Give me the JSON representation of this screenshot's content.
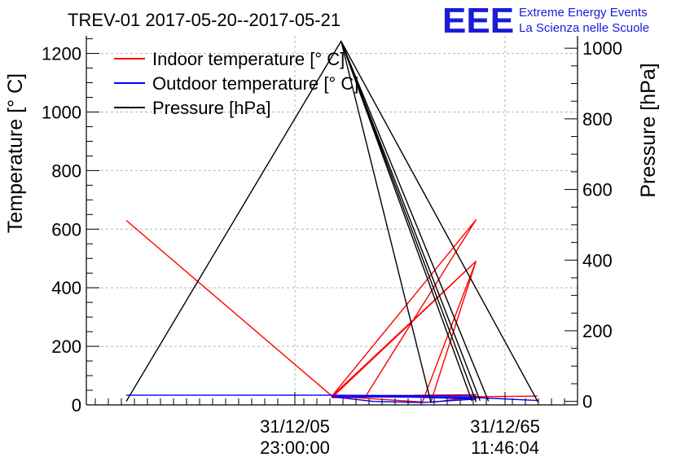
{
  "title": "TREV-01 2017-05-20--2017-05-21",
  "logo": {
    "mark": "EEE",
    "line1": "Extreme Energy Events",
    "line2": "La Scienza nelle Scuole"
  },
  "chart_data": {
    "type": "line",
    "left_axis": {
      "label": "Temperature [° C]",
      "range": [
        0,
        1260
      ],
      "ticks": [
        0,
        200,
        400,
        600,
        800,
        1000,
        1200
      ]
    },
    "right_axis": {
      "label": "Pressure [hPa]",
      "range": [
        -10,
        1035
      ],
      "ticks": [
        0,
        200,
        400,
        600,
        800,
        1000
      ]
    },
    "x_axis": {
      "ticks": [
        {
          "date": "31/12/05",
          "time": "23:00:00"
        },
        {
          "date": "31/12/65",
          "time": "11:46:04"
        }
      ]
    },
    "grid": true,
    "legend": {
      "placement": "top-left",
      "entries": [
        {
          "label": "Indoor temperature [° C]",
          "color": "#ff0000"
        },
        {
          "label": "Outdoor temperature [° C]",
          "color": "#0000ff"
        },
        {
          "label": "Pressure [hPa]",
          "color": "#000000"
        }
      ]
    },
    "series": [
      {
        "axis": "left",
        "color": "#ff0000",
        "points": [
          [
            0.0,
            630
          ],
          [
            0.5,
            30
          ],
          [
            0.85,
            35
          ],
          [
            0.5,
            25
          ],
          [
            0.58,
            25
          ],
          [
            0.85,
            632
          ],
          [
            0.5,
            30
          ],
          [
            0.5,
            25
          ],
          [
            0.85,
            490
          ],
          [
            0.5,
            30
          ],
          [
            0.72,
            10
          ],
          [
            0.85,
            490
          ],
          [
            0.74,
            8
          ],
          [
            0.85,
            28
          ],
          [
            1.0,
            30
          ]
        ]
      },
      {
        "axis": "left",
        "color": "#0000ff",
        "points": [
          [
            0.0,
            33
          ],
          [
            0.5,
            33
          ],
          [
            0.85,
            30
          ],
          [
            0.55,
            30
          ],
          [
            0.74,
            25
          ],
          [
            0.85,
            20
          ],
          [
            0.72,
            8
          ],
          [
            0.6,
            12
          ],
          [
            0.5,
            28
          ],
          [
            0.85,
            25
          ],
          [
            1.0,
            15
          ]
        ]
      },
      {
        "axis": "right",
        "color": "#000000",
        "points": [
          [
            0.0,
            0
          ],
          [
            0.5222,
            1020
          ],
          [
            0.85,
            0
          ],
          [
            0.5222,
            1020
          ],
          [
            0.88,
            2
          ],
          [
            0.5222,
            1020
          ],
          [
            0.84,
            2
          ],
          [
            0.5222,
            1020
          ],
          [
            1.0,
            0
          ],
          [
            0.5222,
            1020
          ],
          [
            0.74,
            0
          ],
          [
            0.5222,
            1020
          ],
          [
            0.86,
            2
          ]
        ]
      }
    ]
  }
}
